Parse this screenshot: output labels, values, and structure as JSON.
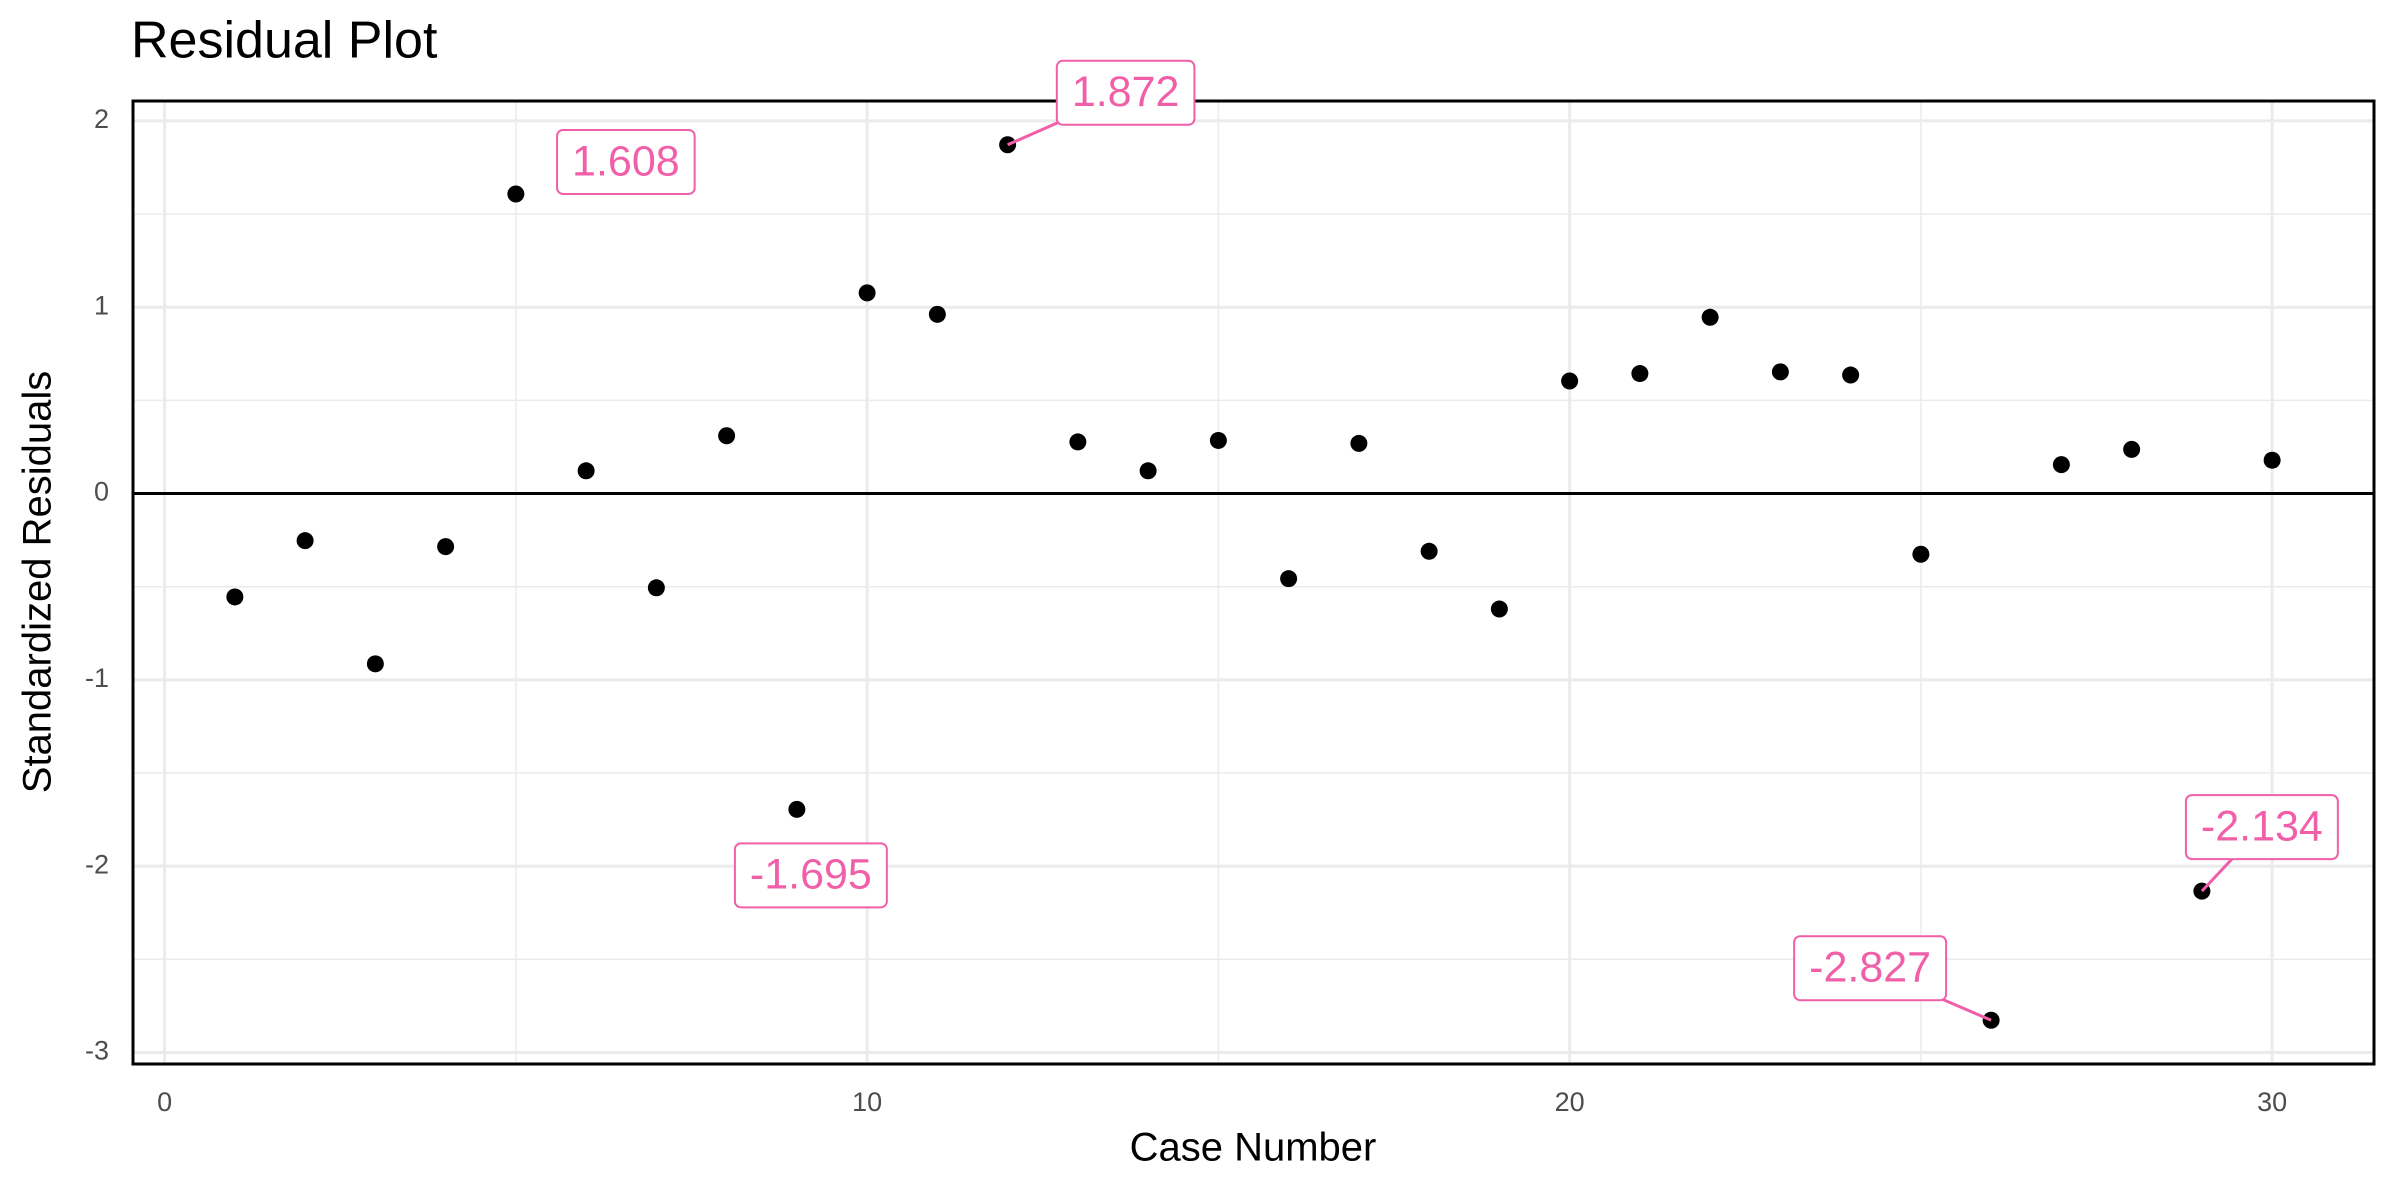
{
  "chart_data": {
    "type": "scatter",
    "title": "Residual Plot",
    "x_label": "Case Number",
    "y_label": "Standardized Residuals",
    "x": [
      1,
      2,
      3,
      4,
      5,
      6,
      7,
      8,
      9,
      10,
      11,
      12,
      13,
      14,
      15,
      16,
      17,
      18,
      19,
      20,
      21,
      22,
      23,
      24,
      25,
      26,
      27,
      28,
      29,
      30
    ],
    "values": [
      -0.555,
      -0.253,
      -0.914,
      -0.285,
      1.608,
      0.122,
      -0.506,
      0.31,
      -1.695,
      1.077,
      0.962,
      1.872,
      0.277,
      0.122,
      0.285,
      -0.457,
      0.269,
      -0.31,
      -0.62,
      0.604,
      0.644,
      0.946,
      0.653,
      0.636,
      -0.326,
      -2.827,
      0.155,
      0.237,
      -2.134,
      0.179
    ],
    "value_labels": [
      null,
      null,
      null,
      null,
      "1.608",
      null,
      null,
      null,
      "-1.695",
      null,
      null,
      "1.872",
      null,
      null,
      null,
      null,
      null,
      null,
      null,
      null,
      null,
      null,
      null,
      null,
      null,
      "-2.827",
      null,
      null,
      "-2.134",
      null
    ],
    "color": "#000000",
    "label_color": "#f15fa8",
    "xlim": [
      -0.45,
      31.45
    ],
    "xticks": [
      0,
      10,
      20,
      30
    ],
    "ylim": [
      -3.062,
      2.107
    ],
    "yticks": [
      -3,
      -2,
      -1,
      0,
      1,
      2
    ],
    "grid": true,
    "minor_grid": true,
    "hline": 0
  }
}
